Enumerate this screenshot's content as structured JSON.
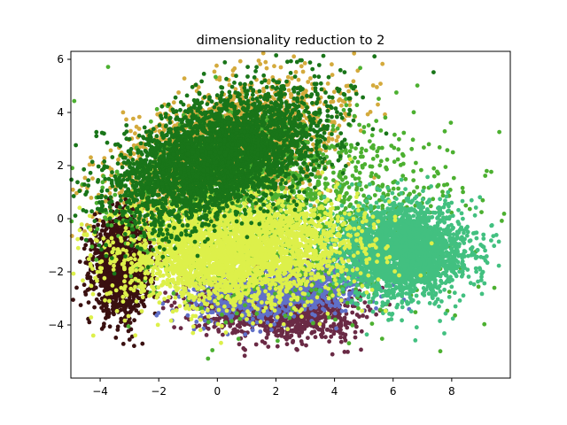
{
  "chart_data": {
    "type": "scatter",
    "title": "dimensionality reduction to 2",
    "xlabel": "",
    "ylabel": "",
    "xlim": [
      -5,
      10
    ],
    "ylim": [
      -6,
      6.3
    ],
    "xticks": [
      -4,
      -2,
      0,
      2,
      4,
      6,
      8
    ],
    "yticks": [
      -4,
      -2,
      0,
      2,
      4,
      6
    ],
    "grid": false,
    "legend": "none",
    "series": [
      {
        "color": "#d4aa3c",
        "center": [
          0.2,
          2.4
        ],
        "spread": [
          2.0,
          1.1
        ],
        "rotation_deg": 28,
        "count": 2400
      },
      {
        "color": "#3a1010",
        "center": [
          -3.3,
          -1.8
        ],
        "spread": [
          0.45,
          0.85
        ],
        "rotation_deg": 0,
        "count": 1600
      },
      {
        "color": "#6a2a45",
        "center": [
          2.0,
          -3.3
        ],
        "spread": [
          1.3,
          0.55
        ],
        "rotation_deg": -5,
        "count": 1500
      },
      {
        "color": "#6070c8",
        "center": [
          2.3,
          -2.7
        ],
        "spread": [
          1.5,
          0.5
        ],
        "rotation_deg": 10,
        "count": 1100
      },
      {
        "color": "#4cb030",
        "center": [
          2.3,
          0.3
        ],
        "spread": [
          2.8,
          1.7
        ],
        "rotation_deg": 0,
        "count": 1800
      },
      {
        "color": "#42c080",
        "center": [
          6.3,
          -1.2
        ],
        "spread": [
          1.1,
          0.85
        ],
        "rotation_deg": 0,
        "count": 2600
      },
      {
        "color": "#ddf04a",
        "center": [
          0.6,
          -1.2
        ],
        "spread": [
          2.0,
          1.0
        ],
        "rotation_deg": 5,
        "count": 3200
      },
      {
        "color": "#197519",
        "center": [
          0.0,
          2.3
        ],
        "spread": [
          1.9,
          1.0
        ],
        "rotation_deg": 28,
        "count": 3600
      }
    ]
  }
}
